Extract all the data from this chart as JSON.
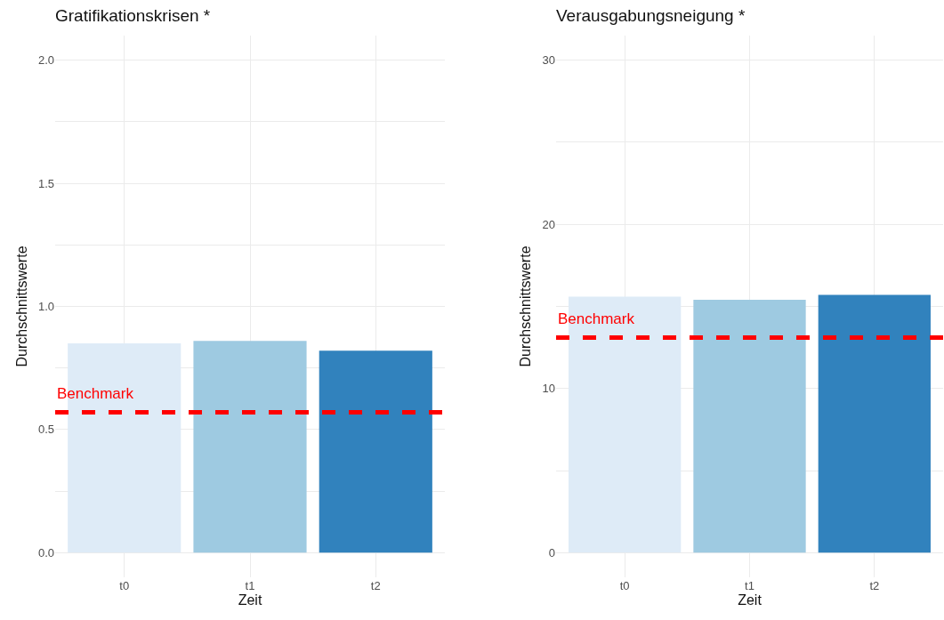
{
  "chart_data": [
    {
      "type": "bar",
      "title": "Gratifikationskrisen *",
      "xlabel": "Zeit",
      "ylabel": "Durchschnittswerte",
      "categories": [
        "t0",
        "t1",
        "t2"
      ],
      "values": [
        0.85,
        0.86,
        0.82
      ],
      "colors": [
        "#deebf7",
        "#9ecae1",
        "#3182bd"
      ],
      "ylim": [
        -0.1,
        2.1
      ],
      "yticks": [
        {
          "value": 0,
          "label": "0.0"
        },
        {
          "value": 0.25,
          "label": null
        },
        {
          "value": 0.5,
          "label": "0.5"
        },
        {
          "value": 0.75,
          "label": null
        },
        {
          "value": 1,
          "label": "1.0"
        },
        {
          "value": 1.25,
          "label": null
        },
        {
          "value": 1.5,
          "label": "1.5"
        },
        {
          "value": 1.75,
          "label": null
        },
        {
          "value": 2,
          "label": "2.0"
        }
      ],
      "grid": true,
      "ref_lines": [
        {
          "axis": "y",
          "value": 0.57,
          "label": "Benchmark",
          "color": "#ff0000",
          "line_style": "dashed"
        }
      ]
    },
    {
      "type": "bar",
      "title": "Verausgabungsneigung *",
      "xlabel": "Zeit",
      "ylabel": "Durchschnittswerte",
      "categories": [
        "t0",
        "t1",
        "t2"
      ],
      "values": [
        15.6,
        15.4,
        15.7
      ],
      "colors": [
        "#deebf7",
        "#9ecae1",
        "#3182bd"
      ],
      "ylim": [
        -1.5,
        31.5
      ],
      "yticks": [
        0,
        {
          "value": 5,
          "label": null
        },
        10,
        {
          "value": 15,
          "label": null
        },
        20,
        {
          "value": 25,
          "label": null
        },
        30
      ],
      "grid": true,
      "ref_lines": [
        {
          "axis": "y",
          "value": 13.1,
          "label": "Benchmark",
          "color": "#ff0000",
          "line_style": "dashed"
        }
      ]
    }
  ]
}
